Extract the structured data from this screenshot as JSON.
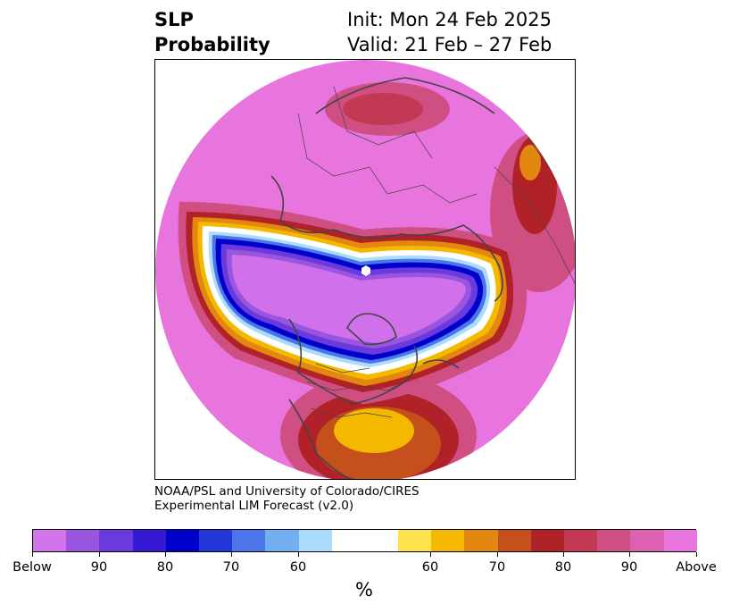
{
  "title": {
    "left_line1": "SLP",
    "left_line2": "Probability",
    "right_line1": "Init: Mon 24 Feb 2025",
    "right_line2": "Valid: 21 Feb – 27 Feb"
  },
  "credit": {
    "line1": "NOAA/PSL and University of Colorado/CIRES",
    "line2": "Experimental LIM Forecast (v2.0)"
  },
  "colorbar": {
    "units": "%",
    "colors": [
      "#d275ec",
      "#9a55e0",
      "#6b3add",
      "#3519d5",
      "#0000cc",
      "#2338d8",
      "#4b75e8",
      "#72aff1",
      "#acdcfd",
      "#ffffff",
      "#fde24e",
      "#f5b800",
      "#e2870f",
      "#c4511c",
      "#b02228",
      "#c33853",
      "#cf4f83",
      "#dc61b0",
      "#e775dd"
    ],
    "ticks": [
      "Below",
      "90",
      "80",
      "70",
      "60",
      "60",
      "70",
      "80",
      "90",
      "Above"
    ]
  },
  "map": {
    "projection": "north-polar-stereographic",
    "features": [
      "coastlines",
      "country-borders",
      "state-borders"
    ],
    "fill_regions": [
      {
        "name": "below-normal-center",
        "level": "Below",
        "color": "#d070ea"
      },
      {
        "name": "above-normal-ring",
        "level": "Above",
        "color": "#e775dd"
      }
    ]
  }
}
